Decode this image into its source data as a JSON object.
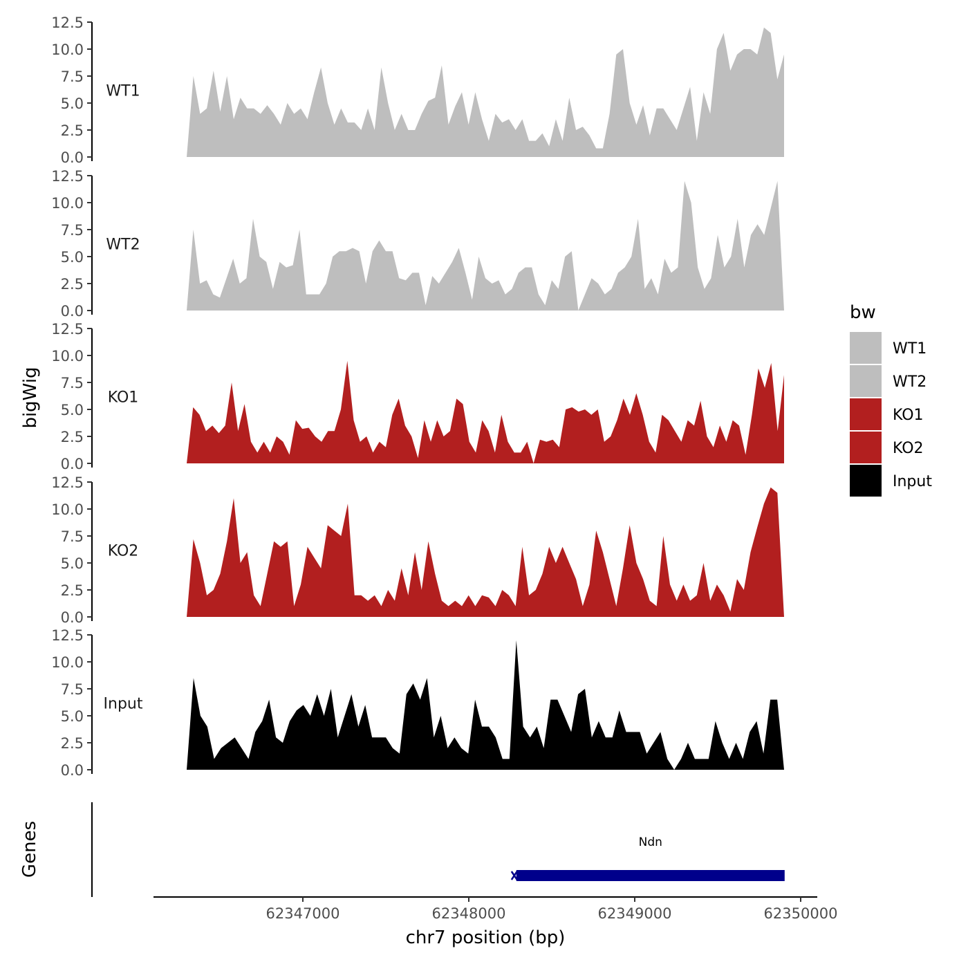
{
  "chart_data": {
    "type": "area",
    "ylabel": "bigWig",
    "xlabel": "chr7 position (bp)",
    "xlim": [
      62346100,
      62350100
    ],
    "x_range": [
      62346300,
      62349900
    ],
    "ylim": [
      0,
      12.5
    ],
    "y_ticks": [
      "0.0",
      "2.5",
      "5.0",
      "7.5",
      "10.0",
      "12.5"
    ],
    "x_ticks": [
      62347000,
      62348000,
      62349000,
      62350000
    ],
    "x_tick_labels": [
      "62347000",
      "62348000",
      "62349000",
      "62350000"
    ],
    "legend": {
      "title": "bw",
      "position": "right",
      "entries": [
        {
          "label": "WT1",
          "color": "#bebebe"
        },
        {
          "label": "WT2",
          "color": "#bebebe"
        },
        {
          "label": "KO1",
          "color": "#b21f1f"
        },
        {
          "label": "KO2",
          "color": "#b21f1f"
        },
        {
          "label": "Input",
          "color": "#000000"
        }
      ]
    },
    "series": [
      {
        "name": "WT1",
        "color": "#bebebe",
        "values": [
          0,
          7.5,
          4,
          4.5,
          8,
          4.2,
          7.5,
          3.5,
          5.5,
          4.5,
          4.5,
          4,
          4.8,
          4,
          3,
          5,
          4,
          4.5,
          3.5,
          6,
          8.3,
          5,
          3,
          4.5,
          3.2,
          3.2,
          2.5,
          4.5,
          2.5,
          8.3,
          5,
          2.5,
          4,
          2.5,
          2.5,
          4,
          5.2,
          5.5,
          8.5,
          3,
          4.7,
          6,
          3,
          6,
          3.5,
          1.5,
          4,
          3.2,
          3.5,
          2.5,
          3.5,
          1.5,
          1.5,
          2.2,
          1,
          3.5,
          1.5,
          5.5,
          2.5,
          2.8,
          2,
          0.8,
          0.8,
          4,
          9.5,
          10,
          5,
          3,
          4.8,
          2,
          4.5,
          4.5,
          3.5,
          2.5,
          4.5,
          6.5,
          1.5,
          6,
          4,
          10,
          11.5,
          8,
          9.5,
          10,
          10,
          9.5,
          12,
          11.5,
          7.2,
          9.5
        ]
      },
      {
        "name": "WT2",
        "color": "#bebebe",
        "values": [
          0,
          7.5,
          2.5,
          2.8,
          1.5,
          1.2,
          3,
          4.8,
          2.5,
          3,
          8.5,
          5,
          4.5,
          2,
          4.5,
          4,
          4.2,
          7.5,
          1.5,
          1.5,
          1.5,
          2.5,
          5,
          5.5,
          5.5,
          5.8,
          5.5,
          2.5,
          5.5,
          6.5,
          5.5,
          5.5,
          3,
          2.8,
          3.5,
          3.5,
          0.5,
          3.2,
          2.5,
          3.5,
          4.5,
          5.8,
          3.5,
          1,
          5,
          3,
          2.5,
          2.8,
          1.5,
          2,
          3.5,
          4,
          4,
          1.5,
          0.5,
          2.8,
          2,
          5,
          5.5,
          0,
          1.5,
          3,
          2.5,
          1.5,
          2,
          3.5,
          4,
          5,
          8.5,
          2,
          3,
          1.5,
          4.8,
          3.5,
          4,
          12,
          10,
          4,
          2,
          3,
          7,
          4,
          5,
          8.5,
          4,
          7,
          8,
          7,
          9.5,
          12,
          0
        ]
      },
      {
        "name": "KO1",
        "color": "#b21f1f",
        "values": [
          0,
          5.2,
          4.5,
          3,
          3.5,
          2.8,
          3.5,
          7.5,
          3,
          5.5,
          2,
          1,
          2,
          1,
          2.5,
          2,
          0.8,
          4,
          3.2,
          3.3,
          2.5,
          2,
          3,
          3,
          5,
          9.5,
          4,
          2,
          2.5,
          1,
          2,
          1.5,
          4.5,
          6,
          3.5,
          2.5,
          0.5,
          4,
          2,
          4,
          2.5,
          3,
          6,
          5.5,
          2,
          1,
          4,
          3,
          1,
          4.5,
          2,
          1,
          1,
          2,
          0,
          2.2,
          2,
          2.2,
          1.5,
          5,
          5.2,
          4.8,
          5,
          4.5,
          5,
          2,
          2.5,
          4,
          6,
          4.5,
          6.5,
          4.5,
          2,
          1,
          4.5,
          4,
          3,
          2,
          4,
          3.5,
          5.8,
          2.5,
          1.5,
          3.5,
          2,
          4,
          3.5,
          0.8,
          4.5,
          8.8,
          7,
          9.3,
          3,
          8.2
        ]
      },
      {
        "name": "KO2",
        "color": "#b21f1f",
        "values": [
          0,
          7.2,
          5,
          2,
          2.5,
          4,
          7,
          11,
          5,
          6,
          2,
          1,
          4,
          7,
          6.5,
          7,
          1,
          3,
          6.5,
          5.5,
          4.5,
          8.5,
          8,
          7.5,
          10.5,
          2,
          2,
          1.5,
          2,
          1,
          2.5,
          1.5,
          4.5,
          2,
          6,
          2.5,
          7,
          4,
          1.5,
          1,
          1.5,
          1,
          2,
          1,
          2,
          1.8,
          1,
          2.5,
          2,
          1,
          6.5,
          2,
          2.5,
          4,
          6.5,
          5,
          6.5,
          5,
          3.5,
          1,
          3,
          8,
          6,
          3.5,
          1,
          4.5,
          8.5,
          5,
          3.5,
          1.5,
          1,
          7.5,
          3,
          1.5,
          3,
          1.5,
          2,
          5,
          1.5,
          3,
          2,
          0.5,
          3.5,
          2.5,
          6,
          8.3,
          10.5,
          12,
          11.5,
          0
        ]
      },
      {
        "name": "Input",
        "color": "#000000",
        "values": [
          0,
          8.5,
          5,
          4,
          1,
          2,
          2.5,
          3,
          2,
          1,
          3.5,
          4.5,
          6.5,
          3,
          2.5,
          4.5,
          5.5,
          6,
          5,
          7,
          5,
          7.5,
          3,
          5,
          7,
          4,
          6,
          3,
          3,
          3,
          2,
          1.5,
          7,
          8,
          6.5,
          8.5,
          3,
          5,
          2,
          3,
          2,
          1.5,
          6.5,
          4,
          4,
          3,
          1,
          1,
          12,
          4,
          3,
          4,
          2,
          6.5,
          6.5,
          5,
          3.5,
          7,
          7.5,
          3,
          4.5,
          3,
          3,
          5.5,
          3.5,
          3.5,
          3.5,
          1.5,
          2.5,
          3.5,
          1,
          0,
          1,
          2.5,
          1,
          1,
          1,
          4.5,
          2.5,
          1,
          2.5,
          1,
          3.5,
          4.5,
          1.5,
          6.5,
          6.5,
          0
        ]
      }
    ],
    "genes": {
      "label": "Genes",
      "items": [
        {
          "name": "Ndn",
          "start": 62348270,
          "end": 62349920,
          "strand": "-",
          "color": "#00008b"
        }
      ]
    }
  }
}
